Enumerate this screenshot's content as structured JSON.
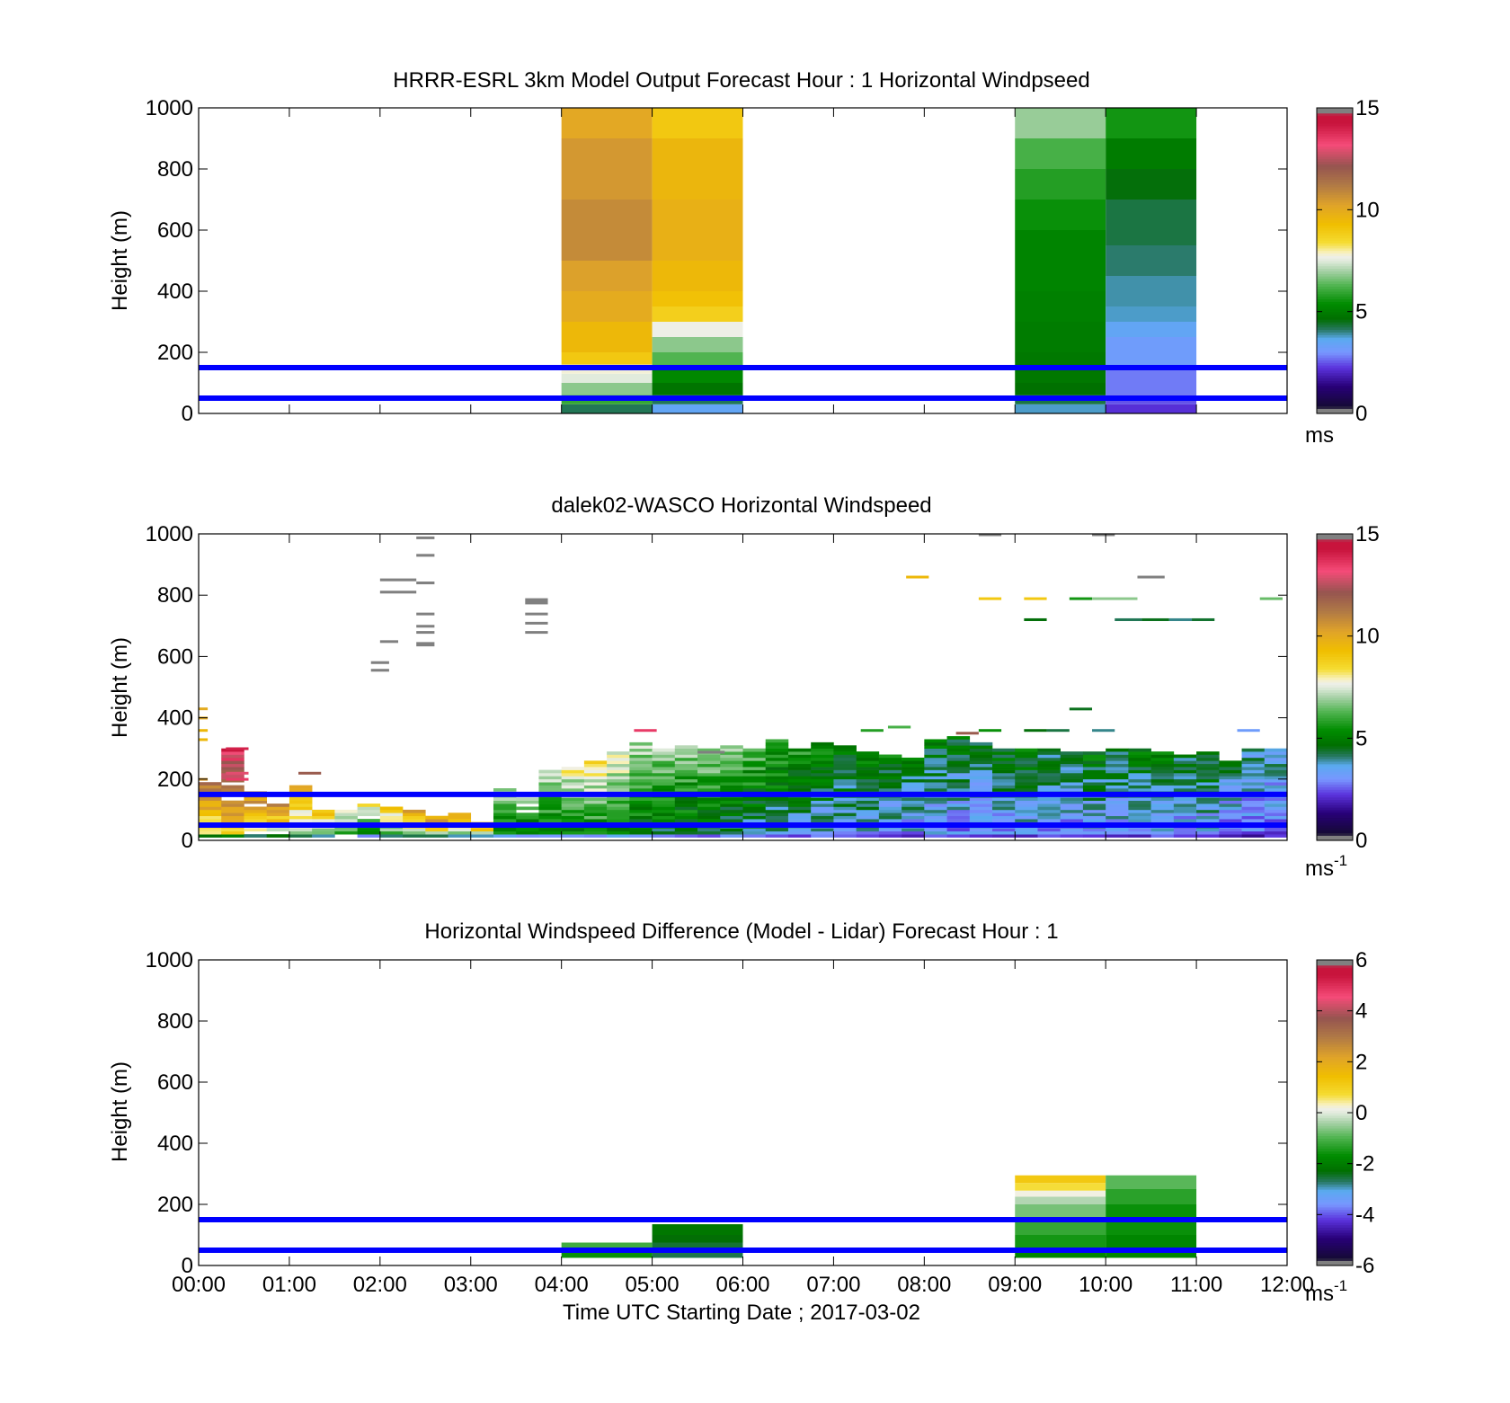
{
  "chart_data": [
    {
      "type": "heatmap",
      "title": "HRRR-ESRL 3km Model Output   Forecast Hour : 1 Horizontal Windpseed",
      "ylabel": "Height (m)",
      "xlim": [
        "00:00",
        "12:00"
      ],
      "ylim": [
        0,
        1000
      ],
      "yticks": [
        "0",
        "200",
        "400",
        "600",
        "800",
        "1000"
      ],
      "colorbar": {
        "range": [
          0,
          15
        ],
        "ticks": [
          "0",
          "5",
          "10",
          "15"
        ],
        "label": "ms"
      },
      "reference_lines_m": [
        50,
        150
      ],
      "blocks": [
        {
          "t0": 4,
          "t1": 5,
          "rows": [
            [
              0,
              30,
              4.2
            ],
            [
              30,
              60,
              6.0
            ],
            [
              60,
              100,
              6.8
            ],
            [
              100,
              130,
              7.5
            ],
            [
              130,
              160,
              7.8
            ],
            [
              160,
              200,
              9.0
            ],
            [
              200,
              300,
              9.5
            ],
            [
              300,
              400,
              10.0
            ],
            [
              400,
              500,
              10.3
            ],
            [
              500,
              700,
              10.8
            ],
            [
              700,
              900,
              10.5
            ],
            [
              900,
              1000,
              10.1
            ]
          ]
        },
        {
          "t0": 5,
          "t1": 6,
          "rows": [
            [
              0,
              30,
              3.5
            ],
            [
              30,
              60,
              4.2
            ],
            [
              60,
              100,
              4.8
            ],
            [
              100,
              150,
              5.3
            ],
            [
              150,
              200,
              6.3
            ],
            [
              200,
              250,
              6.8
            ],
            [
              250,
              300,
              7.7
            ],
            [
              300,
              350,
              8.8
            ],
            [
              350,
              400,
              9.2
            ],
            [
              400,
              500,
              9.5
            ],
            [
              500,
              700,
              9.8
            ],
            [
              700,
              900,
              9.6
            ],
            [
              900,
              1000,
              9.0
            ]
          ]
        },
        {
          "t0": 9,
          "t1": 10,
          "rows": [
            [
              0,
              30,
              3.8
            ],
            [
              30,
              60,
              4.3
            ],
            [
              60,
              100,
              4.7
            ],
            [
              100,
              200,
              4.9
            ],
            [
              200,
              300,
              5.0
            ],
            [
              300,
              400,
              5.1
            ],
            [
              400,
              600,
              5.2
            ],
            [
              600,
              700,
              5.5
            ],
            [
              700,
              800,
              5.8
            ],
            [
              800,
              900,
              6.2
            ],
            [
              900,
              1000,
              6.9
            ]
          ]
        },
        {
          "t0": 10,
          "t1": 11,
          "rows": [
            [
              0,
              30,
              2.2
            ],
            [
              30,
              60,
              2.5
            ],
            [
              60,
              150,
              2.8
            ],
            [
              150,
              250,
              3.2
            ],
            [
              250,
              300,
              3.5
            ],
            [
              300,
              350,
              3.8
            ],
            [
              350,
              450,
              3.9
            ],
            [
              450,
              550,
              4.1
            ],
            [
              550,
              700,
              4.3
            ],
            [
              700,
              800,
              4.6
            ],
            [
              800,
              900,
              5.0
            ],
            [
              900,
              1000,
              5.6
            ]
          ]
        }
      ]
    },
    {
      "type": "heatmap",
      "title": "dalek02-WASCO  Horizontal Windspeed",
      "ylabel": "Height (m)",
      "xlim": [
        "00:00",
        "12:00"
      ],
      "ylim": [
        0,
        1000
      ],
      "yticks": [
        "0",
        "200",
        "400",
        "600",
        "800",
        "1000"
      ],
      "colorbar": {
        "range": [
          0,
          15
        ],
        "ticks": [
          "0",
          "5",
          "10",
          "15"
        ],
        "label": "ms",
        "label_superscript": "-1"
      },
      "reference_lines_m": [
        50,
        150
      ],
      "column_tops_m": [
        200,
        300,
        160,
        120,
        180,
        100,
        110,
        120,
        110,
        100,
        80,
        90,
        70,
        170,
        140,
        230,
        240,
        260,
        290,
        320,
        300,
        310,
        300,
        310,
        300,
        330,
        300,
        320,
        310,
        290,
        280,
        270,
        330,
        340,
        320,
        300,
        300,
        300,
        290,
        290,
        300,
        300,
        290,
        280,
        290,
        260,
        300,
        300
      ],
      "column_means_ms": [
        10.5,
        12.0,
        10.0,
        9.5,
        9.0,
        8.5,
        7.5,
        7.0,
        8.0,
        9.0,
        9.5,
        9.0,
        9.5,
        6.5,
        5.8,
        6.5,
        7.0,
        7.2,
        7.0,
        6.3,
        6.0,
        6.0,
        6.0,
        5.8,
        5.5,
        5.2,
        5.0,
        4.8,
        4.6,
        4.5,
        4.4,
        4.3,
        4.2,
        4.1,
        4.0,
        4.2,
        4.4,
        4.0,
        4.0,
        4.3,
        4.1,
        4.3,
        4.5,
        4.0,
        4.3,
        3.8,
        3.6,
        3.5
      ],
      "scattered_returns": [
        [
          2.0,
          2.4,
          850,
          9,
          16
        ],
        [
          2.0,
          2.4,
          810,
          9,
          16
        ],
        [
          2.4,
          2.6,
          840,
          9,
          16
        ],
        [
          2.4,
          2.6,
          740,
          6,
          16
        ],
        [
          2.4,
          2.6,
          700,
          6,
          16
        ],
        [
          2.4,
          2.6,
          680,
          6,
          16
        ],
        [
          2.4,
          2.6,
          640,
          14,
          16
        ],
        [
          2.0,
          2.2,
          650,
          6,
          16
        ],
        [
          1.9,
          2.1,
          580,
          9,
          16
        ],
        [
          1.9,
          2.1,
          555,
          9,
          16
        ],
        [
          2.4,
          2.6,
          990,
          3,
          16
        ],
        [
          2.4,
          2.6,
          930,
          9,
          16
        ],
        [
          3.6,
          3.85,
          780,
          20,
          16
        ],
        [
          3.6,
          3.85,
          740,
          6,
          16
        ],
        [
          3.6,
          3.85,
          710,
          6,
          16
        ],
        [
          3.6,
          3.85,
          680,
          6,
          16
        ],
        [
          7.8,
          8.05,
          860,
          7,
          9.5
        ],
        [
          8.6,
          8.85,
          790,
          6,
          9.0
        ],
        [
          9.1,
          9.35,
          790,
          6,
          9.0
        ],
        [
          9.6,
          9.85,
          790,
          6,
          5.6
        ],
        [
          9.85,
          10.35,
          790,
          6,
          6.8
        ],
        [
          10.35,
          10.65,
          860,
          7,
          16
        ],
        [
          8.6,
          8.85,
          1000,
          3,
          16
        ],
        [
          9.85,
          10.1,
          1000,
          3,
          16
        ],
        [
          9.1,
          9.35,
          720,
          9,
          4.6
        ],
        [
          10.1,
          10.4,
          720,
          9,
          4.2
        ],
        [
          10.4,
          10.7,
          720,
          9,
          4.5
        ],
        [
          10.7,
          10.95,
          720,
          9,
          4.0
        ],
        [
          10.95,
          11.2,
          720,
          9,
          4.4
        ],
        [
          11.7,
          11.95,
          790,
          6,
          6.5
        ],
        [
          9.6,
          9.85,
          430,
          6,
          4.5
        ],
        [
          9.85,
          10.1,
          360,
          6,
          4.0
        ],
        [
          9.35,
          9.6,
          360,
          6,
          4.3
        ],
        [
          9.1,
          9.35,
          360,
          6,
          4.6
        ],
        [
          8.6,
          8.85,
          360,
          6,
          5.5
        ],
        [
          7.3,
          7.55,
          360,
          6,
          5.8
        ],
        [
          4.8,
          5.05,
          360,
          6,
          13.5
        ],
        [
          11.45,
          11.7,
          360,
          6,
          3.2
        ],
        [
          5.5,
          5.8,
          290,
          4,
          16
        ],
        [
          0.3,
          0.55,
          300,
          7,
          14.0
        ],
        [
          0.3,
          0.55,
          220,
          7,
          13.0
        ],
        [
          0.3,
          0.55,
          200,
          7,
          13.5
        ],
        [
          1.1,
          1.35,
          220,
          7,
          12.0
        ],
        [
          0.0,
          0.1,
          430,
          7,
          10.0
        ],
        [
          0.0,
          0.1,
          400,
          7,
          10.0
        ],
        [
          0.0,
          0.1,
          360,
          6,
          9.5
        ],
        [
          0.0,
          0.1,
          330,
          6,
          9.5
        ],
        [
          0.0,
          0.1,
          200,
          7,
          10.5
        ],
        [
          7.6,
          7.85,
          370,
          8,
          6.2
        ],
        [
          8.35,
          8.6,
          350,
          8,
          12.0
        ]
      ]
    },
    {
      "type": "heatmap",
      "title": "Horizontal Windspeed Difference (Model - Lidar) Forecast Hour : 1",
      "xlabel": "Time UTC  Starting Date ; 2017-03-02",
      "ylabel": "Height (m)",
      "xticks": [
        "00:00",
        "01:00",
        "02:00",
        "03:00",
        "04:00",
        "05:00",
        "06:00",
        "07:00",
        "08:00",
        "09:00",
        "10:00",
        "11:00",
        "12:00"
      ],
      "xlim": [
        "00:00",
        "12:00"
      ],
      "ylim": [
        0,
        1000
      ],
      "yticks": [
        "0",
        "200",
        "400",
        "600",
        "800",
        "1000"
      ],
      "colorbar": {
        "range": [
          -6,
          6
        ],
        "ticks": [
          "-6",
          "-4",
          "-2",
          "0",
          "2",
          "4",
          "6"
        ],
        "label": "ms",
        "label_superscript": "-1"
      },
      "reference_lines_m": [
        50,
        150
      ],
      "blocks": [
        {
          "t0": 4,
          "t1": 5,
          "rows": [
            [
              25,
              50,
              -1.6
            ],
            [
              50,
              75,
              -1.1
            ]
          ]
        },
        {
          "t0": 5,
          "t1": 6,
          "rows": [
            [
              25,
              50,
              -2.6
            ],
            [
              50,
              75,
              -2.5
            ],
            [
              75,
              100,
              -2.3
            ],
            [
              100,
              135,
              -2.1
            ]
          ]
        },
        {
          "t0": 9,
          "t1": 10,
          "rows": [
            [
              25,
              50,
              -1.8
            ],
            [
              50,
              100,
              -1.5
            ],
            [
              100,
              150,
              -1.2
            ],
            [
              150,
              200,
              -0.7
            ],
            [
              200,
              225,
              -0.3
            ],
            [
              225,
              245,
              0.2
            ],
            [
              245,
              270,
              0.7
            ],
            [
              270,
              295,
              1.2
            ]
          ]
        },
        {
          "t0": 10,
          "t1": 11,
          "rows": [
            [
              25,
              100,
              -1.8
            ],
            [
              100,
              200,
              -1.6
            ],
            [
              200,
              250,
              -1.3
            ],
            [
              250,
              295,
              -0.9
            ]
          ]
        }
      ]
    }
  ]
}
